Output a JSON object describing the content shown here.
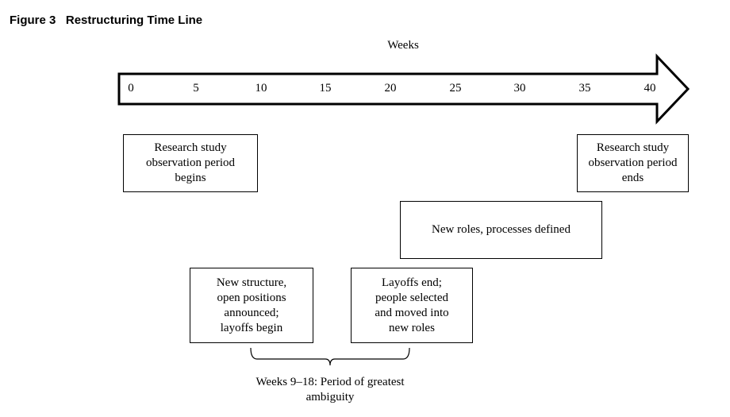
{
  "figure": {
    "label": "Figure 3",
    "title": "Restructuring Time Line"
  },
  "timeline": {
    "axis_title": "Weeks",
    "ticks": [
      "0",
      "5",
      "10",
      "15",
      "20",
      "25",
      "30",
      "35",
      "40"
    ]
  },
  "events": [
    {
      "id": "research-begins",
      "text": "Research study\nobservation period\nbegins"
    },
    {
      "id": "research-ends",
      "text": "Research study\nobservation period\nends"
    },
    {
      "id": "new-roles",
      "text": "New roles, processes defined"
    },
    {
      "id": "new-structure",
      "text": "New structure,\nopen positions\nannounced;\nlayoffs begin"
    },
    {
      "id": "layoffs-end",
      "text": "Layoffs end;\npeople selected\nand moved into\nnew roles"
    }
  ],
  "ambiguity": {
    "label": "Weeks 9–18: Period of greatest\nambiguity"
  }
}
